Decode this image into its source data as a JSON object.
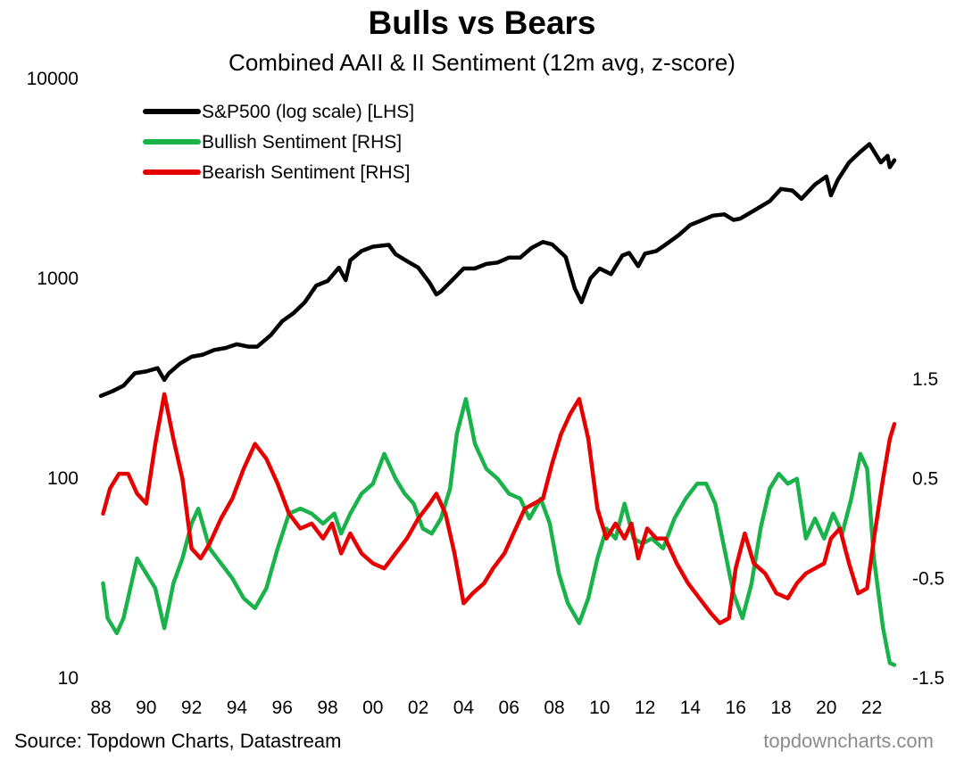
{
  "title": "Bulls vs Bears",
  "subtitle": "Combined AAII & II Sentiment (12m avg, z-score)",
  "source": "Source: Topdown Charts, Datastream",
  "brand": "topdowncharts.com",
  "chart_data": {
    "type": "line",
    "x_axis": {
      "tick_labels": [
        "88",
        "90",
        "92",
        "94",
        "96",
        "98",
        "00",
        "02",
        "04",
        "06",
        "08",
        "10",
        "12",
        "14",
        "16",
        "18",
        "20",
        "22"
      ],
      "tick_years": [
        1988,
        1990,
        1992,
        1994,
        1996,
        1998,
        2000,
        2002,
        2004,
        2006,
        2008,
        2010,
        2012,
        2014,
        2016,
        2018,
        2020,
        2022
      ],
      "range": [
        1988,
        2023
      ]
    },
    "left_axis": {
      "scale": "log",
      "range": [
        10,
        10000
      ],
      "tick_values": [
        10,
        100,
        1000,
        10000
      ],
      "tick_labels": [
        "10",
        "100",
        "1000",
        "10000"
      ]
    },
    "right_axis": {
      "scale": "linear",
      "range": [
        -1.5,
        1.5
      ],
      "tick_values": [
        -1.5,
        -0.5,
        0.5,
        1.5
      ],
      "tick_labels": [
        "-1.5",
        "-0.5",
        "0.5",
        "1.5"
      ]
    },
    "grid": false,
    "legend_position": "top-left",
    "series": [
      {
        "name": "S&P500 (log scale) [LHS]",
        "axis": "left",
        "color": "#000000",
        "points": [
          [
            1988.0,
            258
          ],
          [
            1988.5,
            272
          ],
          [
            1989.0,
            290
          ],
          [
            1989.5,
            335
          ],
          [
            1990.0,
            342
          ],
          [
            1990.5,
            355
          ],
          [
            1990.8,
            310
          ],
          [
            1991.0,
            335
          ],
          [
            1991.5,
            375
          ],
          [
            1992.0,
            405
          ],
          [
            1992.5,
            415
          ],
          [
            1993.0,
            438
          ],
          [
            1993.5,
            448
          ],
          [
            1994.0,
            468
          ],
          [
            1994.5,
            455
          ],
          [
            1994.9,
            455
          ],
          [
            1995.5,
            520
          ],
          [
            1996.0,
            610
          ],
          [
            1996.5,
            670
          ],
          [
            1997.0,
            760
          ],
          [
            1997.5,
            920
          ],
          [
            1998.0,
            970
          ],
          [
            1998.5,
            1130
          ],
          [
            1998.8,
            980
          ],
          [
            1999.0,
            1230
          ],
          [
            1999.5,
            1370
          ],
          [
            2000.0,
            1440
          ],
          [
            2000.7,
            1470
          ],
          [
            2001.0,
            1320
          ],
          [
            2001.5,
            1220
          ],
          [
            2002.0,
            1130
          ],
          [
            2002.5,
            950
          ],
          [
            2002.8,
            830
          ],
          [
            2003.0,
            860
          ],
          [
            2003.5,
            980
          ],
          [
            2004.0,
            1120
          ],
          [
            2004.5,
            1120
          ],
          [
            2005.0,
            1180
          ],
          [
            2005.5,
            1200
          ],
          [
            2006.0,
            1270
          ],
          [
            2006.5,
            1270
          ],
          [
            2007.0,
            1420
          ],
          [
            2007.5,
            1520
          ],
          [
            2007.9,
            1480
          ],
          [
            2008.5,
            1280
          ],
          [
            2008.9,
            890
          ],
          [
            2009.2,
            760
          ],
          [
            2009.6,
            1000
          ],
          [
            2010.0,
            1120
          ],
          [
            2010.5,
            1050
          ],
          [
            2011.0,
            1300
          ],
          [
            2011.3,
            1340
          ],
          [
            2011.7,
            1150
          ],
          [
            2012.0,
            1330
          ],
          [
            2012.5,
            1370
          ],
          [
            2013.0,
            1500
          ],
          [
            2013.5,
            1650
          ],
          [
            2014.0,
            1850
          ],
          [
            2014.5,
            1950
          ],
          [
            2015.0,
            2060
          ],
          [
            2015.5,
            2090
          ],
          [
            2015.9,
            1960
          ],
          [
            2016.2,
            1990
          ],
          [
            2016.8,
            2180
          ],
          [
            2017.5,
            2430
          ],
          [
            2018.0,
            2800
          ],
          [
            2018.5,
            2750
          ],
          [
            2018.9,
            2500
          ],
          [
            2019.5,
            2950
          ],
          [
            2020.0,
            3230
          ],
          [
            2020.2,
            2600
          ],
          [
            2020.5,
            3100
          ],
          [
            2021.0,
            3800
          ],
          [
            2021.5,
            4300
          ],
          [
            2021.9,
            4700
          ],
          [
            2022.4,
            3800
          ],
          [
            2022.7,
            4100
          ],
          [
            2022.8,
            3600
          ],
          [
            2023.0,
            3900
          ]
        ]
      },
      {
        "name": "Bullish Sentiment [RHS]",
        "axis": "right",
        "color": "#1ab34b",
        "points": [
          [
            1988.1,
            -0.55
          ],
          [
            1988.3,
            -0.9
          ],
          [
            1988.7,
            -1.05
          ],
          [
            1989.0,
            -0.9
          ],
          [
            1989.3,
            -0.6
          ],
          [
            1989.6,
            -0.3
          ],
          [
            1990.0,
            -0.45
          ],
          [
            1990.4,
            -0.6
          ],
          [
            1990.8,
            -1.0
          ],
          [
            1991.2,
            -0.55
          ],
          [
            1991.6,
            -0.3
          ],
          [
            1992.0,
            0.05
          ],
          [
            1992.3,
            0.2
          ],
          [
            1992.8,
            -0.2
          ],
          [
            1993.3,
            -0.35
          ],
          [
            1993.8,
            -0.5
          ],
          [
            1994.3,
            -0.7
          ],
          [
            1994.8,
            -0.8
          ],
          [
            1995.3,
            -0.6
          ],
          [
            1995.8,
            -0.2
          ],
          [
            1996.3,
            0.15
          ],
          [
            1996.8,
            0.2
          ],
          [
            1997.3,
            0.15
          ],
          [
            1997.8,
            0.05
          ],
          [
            1998.3,
            0.15
          ],
          [
            1998.6,
            -0.05
          ],
          [
            1999.0,
            0.15
          ],
          [
            1999.5,
            0.35
          ],
          [
            2000.0,
            0.45
          ],
          [
            2000.5,
            0.75
          ],
          [
            2001.0,
            0.5
          ],
          [
            2001.4,
            0.35
          ],
          [
            2001.8,
            0.25
          ],
          [
            2002.2,
            0.0
          ],
          [
            2002.6,
            -0.05
          ],
          [
            2003.0,
            0.1
          ],
          [
            2003.4,
            0.4
          ],
          [
            2003.7,
            0.95
          ],
          [
            2004.1,
            1.3
          ],
          [
            2004.5,
            0.85
          ],
          [
            2005.0,
            0.6
          ],
          [
            2005.5,
            0.5
          ],
          [
            2006.0,
            0.35
          ],
          [
            2006.5,
            0.3
          ],
          [
            2006.9,
            0.1
          ],
          [
            2007.4,
            0.3
          ],
          [
            2007.8,
            0.05
          ],
          [
            2008.2,
            -0.45
          ],
          [
            2008.6,
            -0.75
          ],
          [
            2009.1,
            -0.95
          ],
          [
            2009.5,
            -0.7
          ],
          [
            2009.9,
            -0.3
          ],
          [
            2010.3,
            0.0
          ],
          [
            2010.7,
            -0.1
          ],
          [
            2011.1,
            0.25
          ],
          [
            2011.5,
            -0.1
          ],
          [
            2011.9,
            -0.15
          ],
          [
            2012.3,
            -0.1
          ],
          [
            2012.8,
            -0.2
          ],
          [
            2013.3,
            0.1
          ],
          [
            2013.8,
            0.3
          ],
          [
            2014.3,
            0.45
          ],
          [
            2014.7,
            0.45
          ],
          [
            2015.1,
            0.25
          ],
          [
            2015.5,
            -0.2
          ],
          [
            2015.9,
            -0.65
          ],
          [
            2016.3,
            -0.9
          ],
          [
            2016.7,
            -0.55
          ],
          [
            2017.1,
            0.0
          ],
          [
            2017.5,
            0.4
          ],
          [
            2017.9,
            0.55
          ],
          [
            2018.3,
            0.45
          ],
          [
            2018.7,
            0.5
          ],
          [
            2019.1,
            -0.1
          ],
          [
            2019.5,
            0.1
          ],
          [
            2019.9,
            -0.1
          ],
          [
            2020.3,
            0.15
          ],
          [
            2020.7,
            -0.05
          ],
          [
            2021.1,
            0.3
          ],
          [
            2021.5,
            0.75
          ],
          [
            2021.8,
            0.6
          ],
          [
            2022.1,
            -0.3
          ],
          [
            2022.5,
            -1.0
          ],
          [
            2022.8,
            -1.35
          ],
          [
            2023.0,
            -1.37
          ]
        ]
      },
      {
        "name": "Bearish Sentiment [RHS]",
        "axis": "right",
        "color": "#e60000",
        "points": [
          [
            1988.1,
            0.15
          ],
          [
            1988.4,
            0.4
          ],
          [
            1988.8,
            0.55
          ],
          [
            1989.2,
            0.55
          ],
          [
            1989.6,
            0.35
          ],
          [
            1990.0,
            0.25
          ],
          [
            1990.4,
            0.85
          ],
          [
            1990.8,
            1.35
          ],
          [
            1991.2,
            0.9
          ],
          [
            1991.6,
            0.5
          ],
          [
            1992.0,
            -0.2
          ],
          [
            1992.4,
            -0.3
          ],
          [
            1992.8,
            -0.15
          ],
          [
            1993.3,
            0.1
          ],
          [
            1993.8,
            0.3
          ],
          [
            1994.3,
            0.6
          ],
          [
            1994.8,
            0.85
          ],
          [
            1995.3,
            0.7
          ],
          [
            1995.8,
            0.45
          ],
          [
            1996.3,
            0.15
          ],
          [
            1996.8,
            0.0
          ],
          [
            1997.3,
            0.05
          ],
          [
            1997.8,
            -0.1
          ],
          [
            1998.2,
            0.05
          ],
          [
            1998.6,
            -0.25
          ],
          [
            1999.0,
            -0.05
          ],
          [
            1999.5,
            -0.25
          ],
          [
            2000.0,
            -0.35
          ],
          [
            2000.5,
            -0.4
          ],
          [
            2001.0,
            -0.25
          ],
          [
            2001.5,
            -0.1
          ],
          [
            2002.0,
            0.1
          ],
          [
            2002.5,
            0.25
          ],
          [
            2002.8,
            0.35
          ],
          [
            2003.2,
            0.15
          ],
          [
            2003.6,
            -0.25
          ],
          [
            2004.0,
            -0.75
          ],
          [
            2004.4,
            -0.65
          ],
          [
            2004.9,
            -0.55
          ],
          [
            2005.3,
            -0.4
          ],
          [
            2005.8,
            -0.25
          ],
          [
            2006.2,
            -0.05
          ],
          [
            2006.7,
            0.2
          ],
          [
            2007.1,
            0.25
          ],
          [
            2007.5,
            0.3
          ],
          [
            2007.9,
            0.65
          ],
          [
            2008.3,
            0.95
          ],
          [
            2008.7,
            1.15
          ],
          [
            2009.1,
            1.3
          ],
          [
            2009.5,
            0.9
          ],
          [
            2009.9,
            0.2
          ],
          [
            2010.3,
            -0.1
          ],
          [
            2010.7,
            0.05
          ],
          [
            2011.1,
            -0.1
          ],
          [
            2011.4,
            0.05
          ],
          [
            2011.7,
            -0.3
          ],
          [
            2012.1,
            0.0
          ],
          [
            2012.5,
            -0.1
          ],
          [
            2012.9,
            -0.1
          ],
          [
            2013.4,
            -0.35
          ],
          [
            2013.9,
            -0.55
          ],
          [
            2014.4,
            -0.7
          ],
          [
            2014.9,
            -0.85
          ],
          [
            2015.3,
            -0.95
          ],
          [
            2015.7,
            -0.9
          ],
          [
            2016.0,
            -0.4
          ],
          [
            2016.4,
            -0.05
          ],
          [
            2016.8,
            -0.35
          ],
          [
            2017.3,
            -0.45
          ],
          [
            2017.8,
            -0.65
          ],
          [
            2018.3,
            -0.7
          ],
          [
            2018.7,
            -0.55
          ],
          [
            2019.1,
            -0.45
          ],
          [
            2019.5,
            -0.4
          ],
          [
            2019.9,
            -0.35
          ],
          [
            2020.2,
            -0.1
          ],
          [
            2020.6,
            0.0
          ],
          [
            2021.0,
            -0.35
          ],
          [
            2021.4,
            -0.65
          ],
          [
            2021.8,
            -0.6
          ],
          [
            2022.1,
            -0.1
          ],
          [
            2022.5,
            0.5
          ],
          [
            2022.8,
            0.9
          ],
          [
            2023.0,
            1.05
          ]
        ]
      }
    ]
  }
}
